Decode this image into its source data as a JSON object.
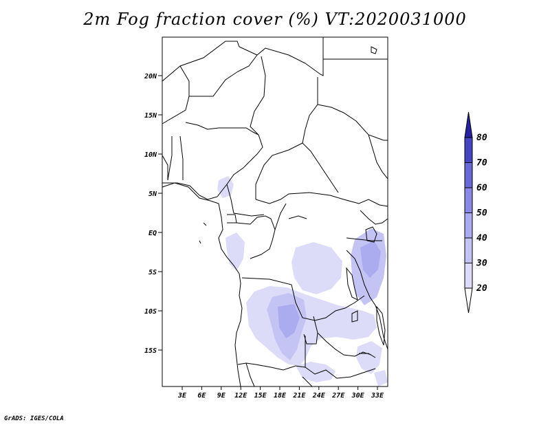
{
  "title": "2m Fog fraction cover (%) VT:2020031000",
  "credit": "GrADS: IGES/COLA",
  "lat_labels": [
    "20N",
    "15N",
    "10N",
    "5N",
    "EQ",
    "5S",
    "10S",
    "15S"
  ],
  "lon_labels": [
    "3E",
    "6E",
    "9E",
    "12E",
    "15E",
    "18E",
    "21E",
    "24E",
    "27E",
    "30E",
    "33E"
  ],
  "colorbar": {
    "levels": [
      "20",
      "30",
      "40",
      "50",
      "60",
      "70",
      "80"
    ],
    "colors": [
      "#ffffff",
      "#dcdcf8",
      "#c4c4f4",
      "#ababf0",
      "#8a8ae6",
      "#6a6ad6",
      "#4646c0",
      "#28229e"
    ]
  },
  "fill_colors": {
    "light": "#dcdcf8",
    "medium": "#c4c4f4",
    "dark": "#ababf0"
  }
}
